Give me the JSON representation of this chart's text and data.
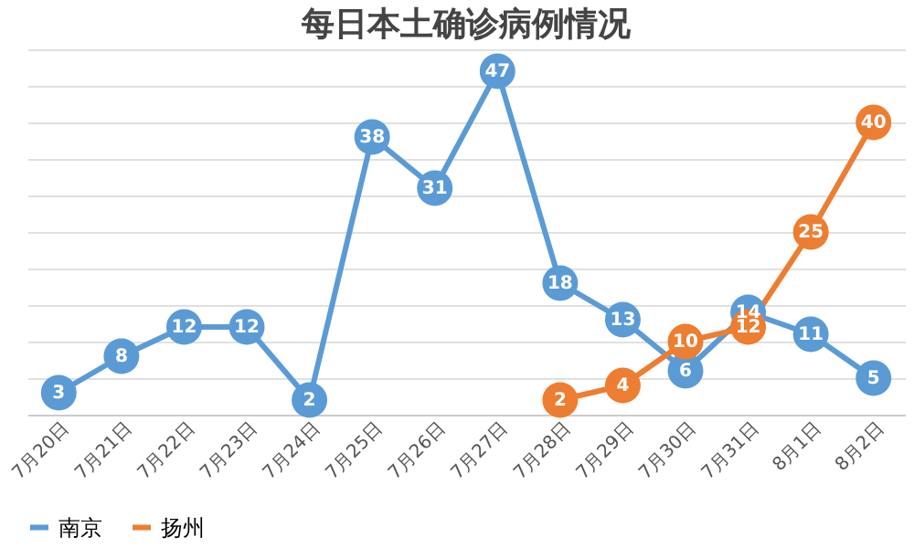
{
  "chart_data": {
    "type": "line",
    "title": "每日本土确诊病例情况",
    "categories": [
      "7月20日",
      "7月21日",
      "7月22日",
      "7月23日",
      "7月24日",
      "7月25日",
      "7月26日",
      "7月27日",
      "7月28日",
      "7月29日",
      "7月30日",
      "7月31日",
      "8月1日",
      "8月2日"
    ],
    "series": [
      {
        "name": "南京",
        "color": "#5b9bd5",
        "values": [
          3,
          8,
          12,
          12,
          2,
          38,
          31,
          47,
          18,
          13,
          6,
          14,
          11,
          5
        ]
      },
      {
        "name": "扬州",
        "color": "#ed7d31",
        "values": [
          null,
          null,
          null,
          null,
          null,
          null,
          null,
          null,
          2,
          4,
          10,
          12,
          25,
          40
        ]
      }
    ],
    "tick_labels": "x",
    "grid": "y",
    "legend": "bottom",
    "marker": "circle",
    "line_style": "solid",
    "data_labels": true
  }
}
